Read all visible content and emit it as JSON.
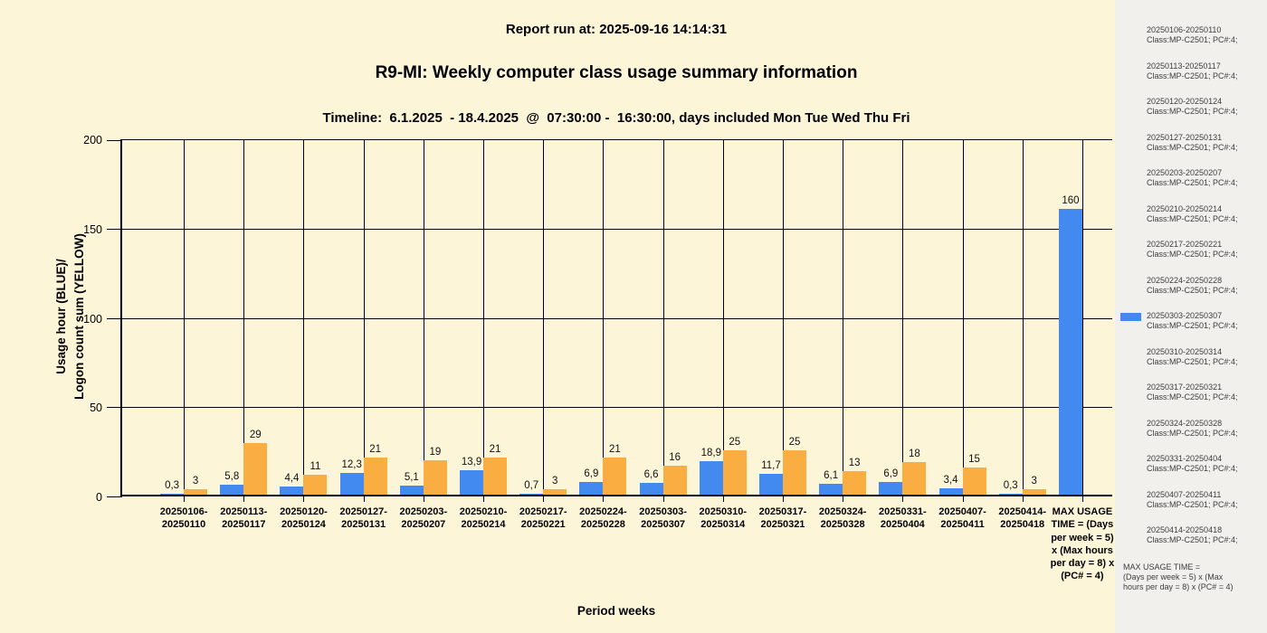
{
  "header": {
    "report_run": "Report run at: 2025-09-16 14:14:31",
    "title": "R9-MI: Weekly computer class usage summary information",
    "timeline": "Timeline:  6.1.2025  - 18.4.2025  @  07:30:00 -  16:30:00, days included Mon Tue Wed Thu Fri"
  },
  "colors": {
    "usage_blue": "#4289F0",
    "logon_yellow": "#FAAE42",
    "background": "#FDF5D8",
    "sidebar_background": "#F2F0ED",
    "grid": "#000000"
  },
  "chart_data": {
    "type": "bar",
    "title": "R9-MI: Weekly computer class usage summary information",
    "subtitle": "Timeline:  6.1.2025  - 18.4.2025  @  07:30:00 -  16:30:00, days included Mon Tue Wed Thu Fri",
    "xlabel": "Period weeks",
    "ylabel": "Usage hour (BLUE)/\nLogon count sum (YELLOW)",
    "ylim": [
      0,
      200
    ],
    "yticks": [
      0,
      50,
      100,
      150,
      200
    ],
    "grid": true,
    "legend_position": "right-sidebar",
    "categories": [
      "20250106-20250110",
      "20250113-20250117",
      "20250120-20250124",
      "20250127-20250131",
      "20250203-20250207",
      "20250210-20250214",
      "20250217-20250221",
      "20250224-20250228",
      "20250303-20250307",
      "20250310-20250314",
      "20250317-20250321",
      "20250324-20250328",
      "20250331-20250404",
      "20250407-20250411",
      "20250414-20250418",
      "MAX USAGE TIME = (Days per week = 5) x (Max hours per day = 8) x (PC# = 4)"
    ],
    "series": [
      {
        "name": "Usage hour",
        "color": "#4289F0",
        "values": [
          0.3,
          5.8,
          4.4,
          12.3,
          5.1,
          13.9,
          0.7,
          6.9,
          6.6,
          18.9,
          11.7,
          6.1,
          6.9,
          3.4,
          0.3,
          160
        ],
        "labels": [
          "0,3",
          "5,8",
          "4,4",
          "12,3",
          "5,1",
          "13,9",
          "0,7",
          "6,9",
          "6,6",
          "18,9",
          "11,7",
          "6,1",
          "6,9",
          "3,4",
          "0,3",
          "160"
        ]
      },
      {
        "name": "Logon count sum",
        "color": "#FAAE42",
        "values": [
          3,
          29,
          11,
          21,
          19,
          21,
          3,
          21,
          16,
          25,
          25,
          13,
          18,
          15,
          3,
          null
        ],
        "labels": [
          "3",
          "29",
          "11",
          "21",
          "19",
          "21",
          "3",
          "21",
          "16",
          "25",
          "25",
          "13",
          "18",
          "15",
          "3",
          null
        ]
      }
    ]
  },
  "sidebar": {
    "legend_swatch_entry_index": 8,
    "entries": [
      {
        "range": "20250106-20250110",
        "detail": "Class:MP-C2501; PC#:4;"
      },
      {
        "range": "20250113-20250117",
        "detail": "Class:MP-C2501; PC#:4;"
      },
      {
        "range": "20250120-20250124",
        "detail": "Class:MP-C2501; PC#:4;"
      },
      {
        "range": "20250127-20250131",
        "detail": "Class:MP-C2501; PC#:4;"
      },
      {
        "range": "20250203-20250207",
        "detail": "Class:MP-C2501; PC#:4;"
      },
      {
        "range": "20250210-20250214",
        "detail": "Class:MP-C2501; PC#:4;"
      },
      {
        "range": "20250217-20250221",
        "detail": "Class:MP-C2501; PC#:4;"
      },
      {
        "range": "20250224-20250228",
        "detail": "Class:MP-C2501; PC#:4;"
      },
      {
        "range": "20250303-20250307",
        "detail": "Class:MP-C2501; PC#:4;"
      },
      {
        "range": "20250310-20250314",
        "detail": "Class:MP-C2501; PC#:4;"
      },
      {
        "range": "20250317-20250321",
        "detail": "Class:MP-C2501; PC#:4;"
      },
      {
        "range": "20250324-20250328",
        "detail": "Class:MP-C2501; PC#:4;"
      },
      {
        "range": "20250331-20250404",
        "detail": "Class:MP-C2501; PC#:4;"
      },
      {
        "range": "20250407-20250411",
        "detail": "Class:MP-C2501; PC#:4;"
      },
      {
        "range": "20250414-20250418",
        "detail": "Class:MP-C2501; PC#:4;"
      }
    ],
    "max_note": "MAX USAGE TIME =\n (Days per week = 5) x (Max hours per day = 8) x (PC# = 4)"
  }
}
